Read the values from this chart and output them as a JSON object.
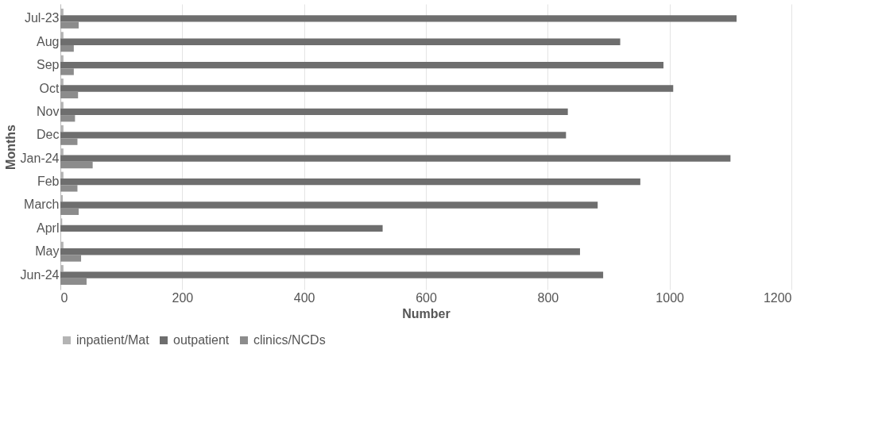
{
  "chart_data": {
    "type": "bar",
    "orientation": "horizontal",
    "xlabel": "Number",
    "ylabel": "Months",
    "categories": [
      "Jul-23",
      "Aug",
      "Sep",
      "Oct",
      "Nov",
      "Dec",
      "Jan-24",
      "Feb",
      "March",
      "Aprl",
      "May",
      "Jun-24"
    ],
    "series": [
      {
        "name": "inpatient/Mat",
        "color": "#b4b4b4",
        "values": [
          5,
          5,
          5,
          5,
          5,
          5,
          5,
          5,
          4,
          3,
          5,
          5
        ]
      },
      {
        "name": "outpatient",
        "color": "#6e6e6e",
        "values": [
          1110,
          919,
          990,
          1006,
          833,
          830,
          1100,
          952,
          882,
          529,
          853,
          891
        ]
      },
      {
        "name": "clinics/NCDs",
        "color": "#8c8c8c",
        "values": [
          30,
          22,
          22,
          29,
          24,
          28,
          53,
          28,
          30,
          null,
          34,
          43
        ]
      }
    ],
    "xlim": [
      0,
      1200
    ],
    "xticks": [
      0,
      200,
      400,
      600,
      800,
      1000,
      1200
    ],
    "grid": "x",
    "legend": "bottom"
  }
}
